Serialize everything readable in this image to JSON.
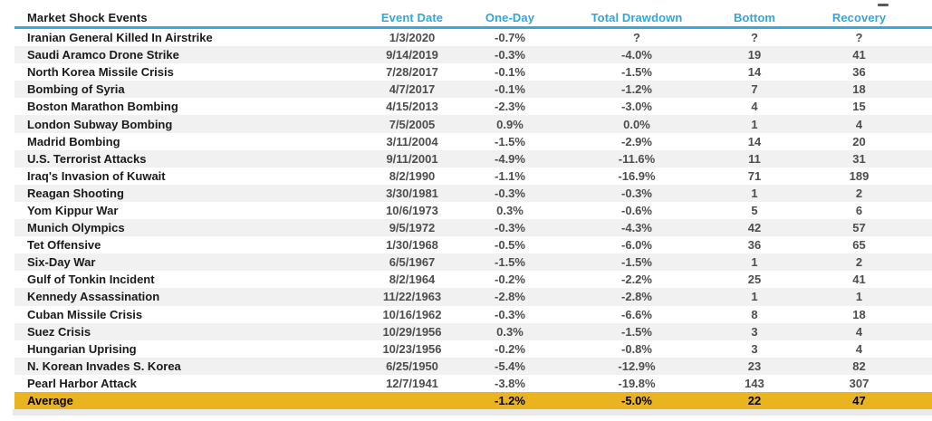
{
  "chart_data": {
    "type": "table",
    "title": "Market Shock Events",
    "columns": [
      "Market Shock Events",
      "Event Date",
      "One-Day",
      "Total Drawdown",
      "Bottom",
      "Recovery"
    ],
    "rows": [
      [
        "Iranian General Killed In Airstrike",
        "1/3/2020",
        "-0.7%",
        "?",
        "?",
        "?"
      ],
      [
        "Saudi Aramco Drone Strike",
        "9/14/2019",
        "-0.3%",
        "-4.0%",
        "19",
        "41"
      ],
      [
        "North Korea Missile Crisis",
        "7/28/2017",
        "-0.1%",
        "-1.5%",
        "14",
        "36"
      ],
      [
        "Bombing of Syria",
        "4/7/2017",
        "-0.1%",
        "-1.2%",
        "7",
        "18"
      ],
      [
        "Boston Marathon Bombing",
        "4/15/2013",
        "-2.3%",
        "-3.0%",
        "4",
        "15"
      ],
      [
        "London Subway Bombing",
        "7/5/2005",
        "0.9%",
        "0.0%",
        "1",
        "4"
      ],
      [
        "Madrid Bombing",
        "3/11/2004",
        "-1.5%",
        "-2.9%",
        "14",
        "20"
      ],
      [
        "U.S. Terrorist Attacks",
        "9/11/2001",
        "-4.9%",
        "-11.6%",
        "11",
        "31"
      ],
      [
        "Iraq's Invasion of Kuwait",
        "8/2/1990",
        "-1.1%",
        "-16.9%",
        "71",
        "189"
      ],
      [
        "Reagan Shooting",
        "3/30/1981",
        "-0.3%",
        "-0.3%",
        "1",
        "2"
      ],
      [
        "Yom Kippur War",
        "10/6/1973",
        "0.3%",
        "-0.6%",
        "5",
        "6"
      ],
      [
        "Munich Olympics",
        "9/5/1972",
        "-0.3%",
        "-4.3%",
        "42",
        "57"
      ],
      [
        "Tet Offensive",
        "1/30/1968",
        "-0.5%",
        "-6.0%",
        "36",
        "65"
      ],
      [
        "Six-Day War",
        "6/5/1967",
        "-1.5%",
        "-1.5%",
        "1",
        "2"
      ],
      [
        "Gulf of Tonkin Incident",
        "8/2/1964",
        "-0.2%",
        "-2.2%",
        "25",
        "41"
      ],
      [
        "Kennedy Assassination",
        "11/22/1963",
        "-2.8%",
        "-2.8%",
        "1",
        "1"
      ],
      [
        "Cuban Missile Crisis",
        "10/16/1962",
        "-0.3%",
        "-6.6%",
        "8",
        "18"
      ],
      [
        "Suez Crisis",
        "10/29/1956",
        "0.3%",
        "-1.5%",
        "3",
        "4"
      ],
      [
        "Hungarian Uprising",
        "10/23/1956",
        "-0.2%",
        "-0.8%",
        "3",
        "4"
      ],
      [
        "N. Korean Invades S. Korea",
        "6/25/1950",
        "-5.4%",
        "-12.9%",
        "23",
        "82"
      ],
      [
        "Pearl Harbor Attack",
        "12/7/1941",
        "-3.8%",
        "-19.8%",
        "143",
        "307"
      ]
    ],
    "footer": [
      "Average",
      "",
      "-1.2%",
      "-5.0%",
      "22",
      "47"
    ],
    "layout": {
      "striped": true,
      "stripe_pattern": "even rows gray",
      "footer_highlighted": true,
      "grid": false,
      "value_columns_align": "center",
      "name_column_align": "left"
    }
  },
  "colors": {
    "header_blue": "#2FA6DC",
    "header_underline_blue": "#33AADF",
    "row_stripe_gray": "#F1F1F1",
    "average_row_gold": "#E9B41F",
    "event_name_text": "#1A1A1A",
    "value_text": "#4D4D4D",
    "bottom_shadow_band": "#E9E9E9"
  },
  "icons": {
    "cropped_text_dash": "small dark horizontal dash artifact above Recovery header"
  }
}
